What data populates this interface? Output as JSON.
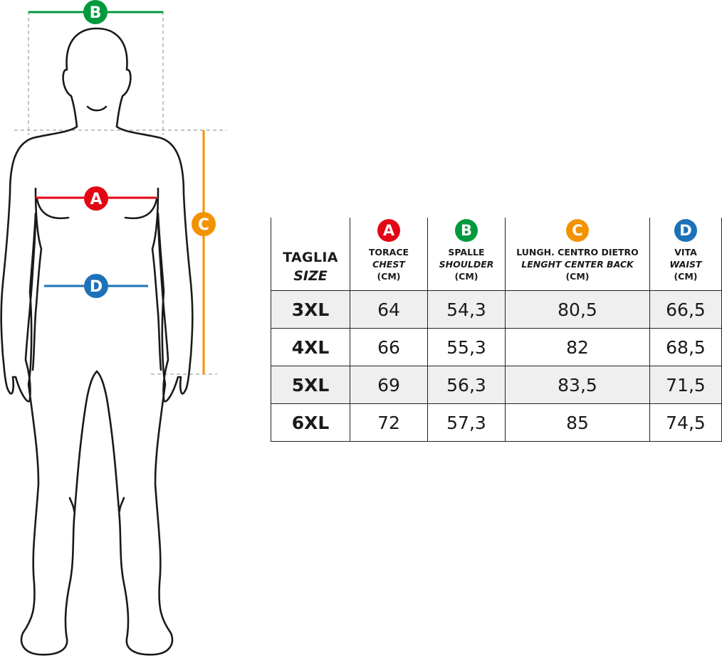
{
  "markers": {
    "A": {
      "letter": "A",
      "color": "#e30613"
    },
    "B": {
      "letter": "B",
      "color": "#009a3e"
    },
    "C": {
      "letter": "C",
      "color": "#f39200"
    },
    "D": {
      "letter": "D",
      "color": "#1d71b8"
    }
  },
  "table": {
    "size_header": {
      "main": "TAGLIA",
      "sub": "SIZE"
    },
    "columns": [
      {
        "marker": "A",
        "it": "TORACE",
        "en": "CHEST",
        "unit": "(CM)"
      },
      {
        "marker": "B",
        "it": "SPALLE",
        "en": "SHOULDER",
        "unit": "(CM)"
      },
      {
        "marker": "C",
        "it": "LUNGH. CENTRO DIETRO",
        "en": "LENGHT CENTER BACK",
        "unit": "(CM)"
      },
      {
        "marker": "D",
        "it": "VITA",
        "en": "WAIST",
        "unit": "(CM)"
      }
    ],
    "rows": [
      {
        "size": "3XL",
        "values": [
          "64",
          "54,3",
          "80,5",
          "66,5"
        ]
      },
      {
        "size": "4XL",
        "values": [
          "66",
          "55,3",
          "82",
          "68,5"
        ]
      },
      {
        "size": "5XL",
        "values": [
          "69",
          "56,3",
          "83,5",
          "71,5"
        ]
      },
      {
        "size": "6XL",
        "values": [
          "72",
          "57,3",
          "85",
          "74,5"
        ]
      }
    ]
  }
}
